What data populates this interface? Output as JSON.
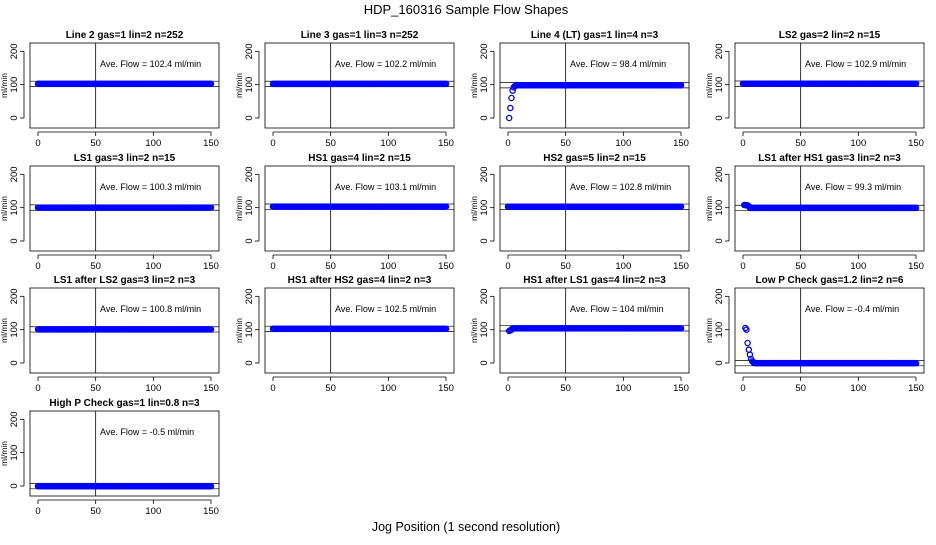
{
  "chart_data": {
    "type": "scatter",
    "title": "HDP_160316  Sample Flow Shapes",
    "xlabel": "Jog Position (1 second resolution)",
    "ylabel": "ml/min",
    "xlim": [
      0,
      150
    ],
    "ylim": [
      -30,
      225
    ],
    "x_ticks": [
      "0",
      "50",
      "100",
      "150"
    ],
    "y_ticks": [
      "0",
      "100",
      "200"
    ],
    "marker_color": "#0000ff",
    "panels": [
      {
        "title": "Line 2 gas=1 lin=2 n=252",
        "annotation": "Ave. Flow = 102.4  ml/min",
        "shape": "flat",
        "level": 102.4
      },
      {
        "title": "Line 3 gas=1 lin=3 n=252",
        "annotation": "Ave. Flow = 102.2  ml/min",
        "shape": "flat",
        "level": 102.2
      },
      {
        "title": "Line 4 (LT) gas=1 lin=4 n=3",
        "annotation": "Ave. Flow = 98.4  ml/min",
        "shape": "rise",
        "level": 98.4,
        "points": [
          [
            1,
            0
          ],
          [
            2,
            30
          ],
          [
            3,
            60
          ],
          [
            4,
            82
          ],
          [
            5,
            92
          ],
          [
            6,
            96
          ],
          [
            7,
            98
          ],
          [
            8,
            99
          ]
        ]
      },
      {
        "title": "LS2 gas=2 lin=2 n=15",
        "annotation": "Ave. Flow = 102.9  ml/min",
        "shape": "flat",
        "level": 102.9
      },
      {
        "title": "LS1 gas=3 lin=2 n=15",
        "annotation": "Ave. Flow = 100.3  ml/min",
        "shape": "flat",
        "level": 100.3
      },
      {
        "title": "HS1 gas=4 lin=2 n=15",
        "annotation": "Ave. Flow = 103.1  ml/min",
        "shape": "flat",
        "level": 103.1
      },
      {
        "title": "HS2 gas=5 lin=2 n=15",
        "annotation": "Ave. Flow = 102.8  ml/min",
        "shape": "flat",
        "level": 102.8
      },
      {
        "title": "LS1 after HS1 gas=3 lin=2 n=3",
        "annotation": "Ave. Flow = 99.3  ml/min",
        "shape": "flat",
        "level": 99.3,
        "points": [
          [
            1,
            108
          ],
          [
            2,
            108
          ],
          [
            3,
            107
          ],
          [
            4,
            107
          ],
          [
            5,
            104
          ]
        ]
      },
      {
        "title": "LS1 after LS2 gas=3 lin=2 n=3",
        "annotation": "Ave. Flow = 100.8  ml/min",
        "shape": "flat",
        "level": 100.8
      },
      {
        "title": "HS1 after HS2 gas=4 lin=2 n=3",
        "annotation": "Ave. Flow = 102.5  ml/min",
        "shape": "flat",
        "level": 102.5
      },
      {
        "title": "HS1 after LS1 gas=4 lin=2 n=3",
        "annotation": "Ave. Flow = 104  ml/min",
        "shape": "flat",
        "level": 104,
        "points": [
          [
            1,
            96
          ],
          [
            2,
            98
          ],
          [
            3,
            100
          ]
        ]
      },
      {
        "title": "Low P Check gas=1.2 lin=2 n=6",
        "annotation": "Ave. Flow = -0.4  ml/min",
        "shape": "decay",
        "level": -0.4,
        "points": [
          [
            2,
            105
          ],
          [
            3,
            100
          ],
          [
            4,
            60
          ],
          [
            5,
            40
          ],
          [
            6,
            25
          ],
          [
            7,
            12
          ],
          [
            8,
            5
          ],
          [
            9,
            2
          ],
          [
            10,
            0
          ]
        ]
      },
      {
        "title": "High P Check gas=1 lin=0.8 n=3",
        "annotation": "Ave. Flow = -0.5  ml/min",
        "shape": "flat",
        "level": -0.5
      }
    ]
  }
}
